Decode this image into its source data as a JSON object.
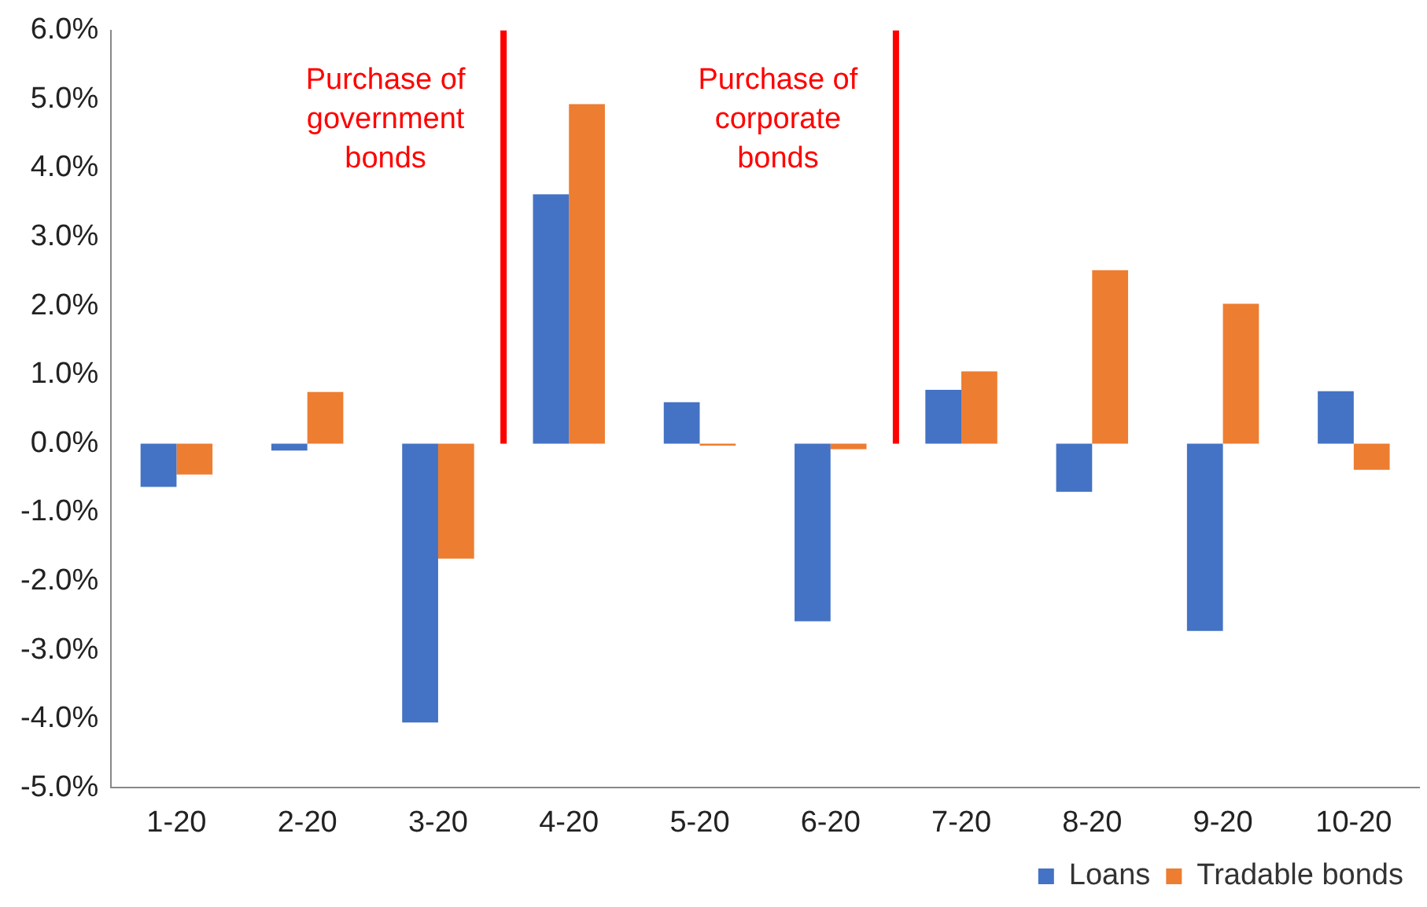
{
  "chart_data": {
    "type": "bar",
    "categories": [
      "1-20",
      "2-20",
      "3-20",
      "4-20",
      "5-20",
      "6-20",
      "7-20",
      "8-20",
      "9-20",
      "10-20"
    ],
    "series": [
      {
        "name": "Loans",
        "color": "#4472c4",
        "values": [
          -0.63,
          -0.1,
          -4.05,
          3.62,
          0.6,
          -2.58,
          0.78,
          -0.7,
          -2.72,
          0.76
        ]
      },
      {
        "name": "Tradable bonds",
        "color": "#ed7d31",
        "values": [
          -0.45,
          0.75,
          -1.67,
          4.93,
          -0.03,
          -0.08,
          1.05,
          2.52,
          2.03,
          -0.38
        ]
      }
    ],
    "ylim": [
      -5,
      6
    ],
    "yticks": [
      {
        "value": -5,
        "label": "-5.0%"
      },
      {
        "value": -4,
        "label": "-4.0%"
      },
      {
        "value": -3,
        "label": "-3.0%"
      },
      {
        "value": -2,
        "label": "-2.0%"
      },
      {
        "value": -1,
        "label": "-1.0%"
      },
      {
        "value": 0,
        "label": "0.0%"
      },
      {
        "value": 1,
        "label": "1.0%"
      },
      {
        "value": 2,
        "label": "2.0%"
      },
      {
        "value": 3,
        "label": "3.0%"
      },
      {
        "value": 4,
        "label": "4.0%"
      },
      {
        "value": 5,
        "label": "5.0%"
      },
      {
        "value": 6,
        "label": "6.0%"
      }
    ],
    "ref_lines": [
      {
        "axis": "x",
        "value": "4-20",
        "label": "Purchase of government bonds",
        "color": "#ff0000"
      },
      {
        "axis": "x",
        "value": "7-20",
        "label": "Purchase of corporate bonds",
        "color": "#ff0000"
      }
    ],
    "grid": false,
    "legend": "bottom right"
  }
}
